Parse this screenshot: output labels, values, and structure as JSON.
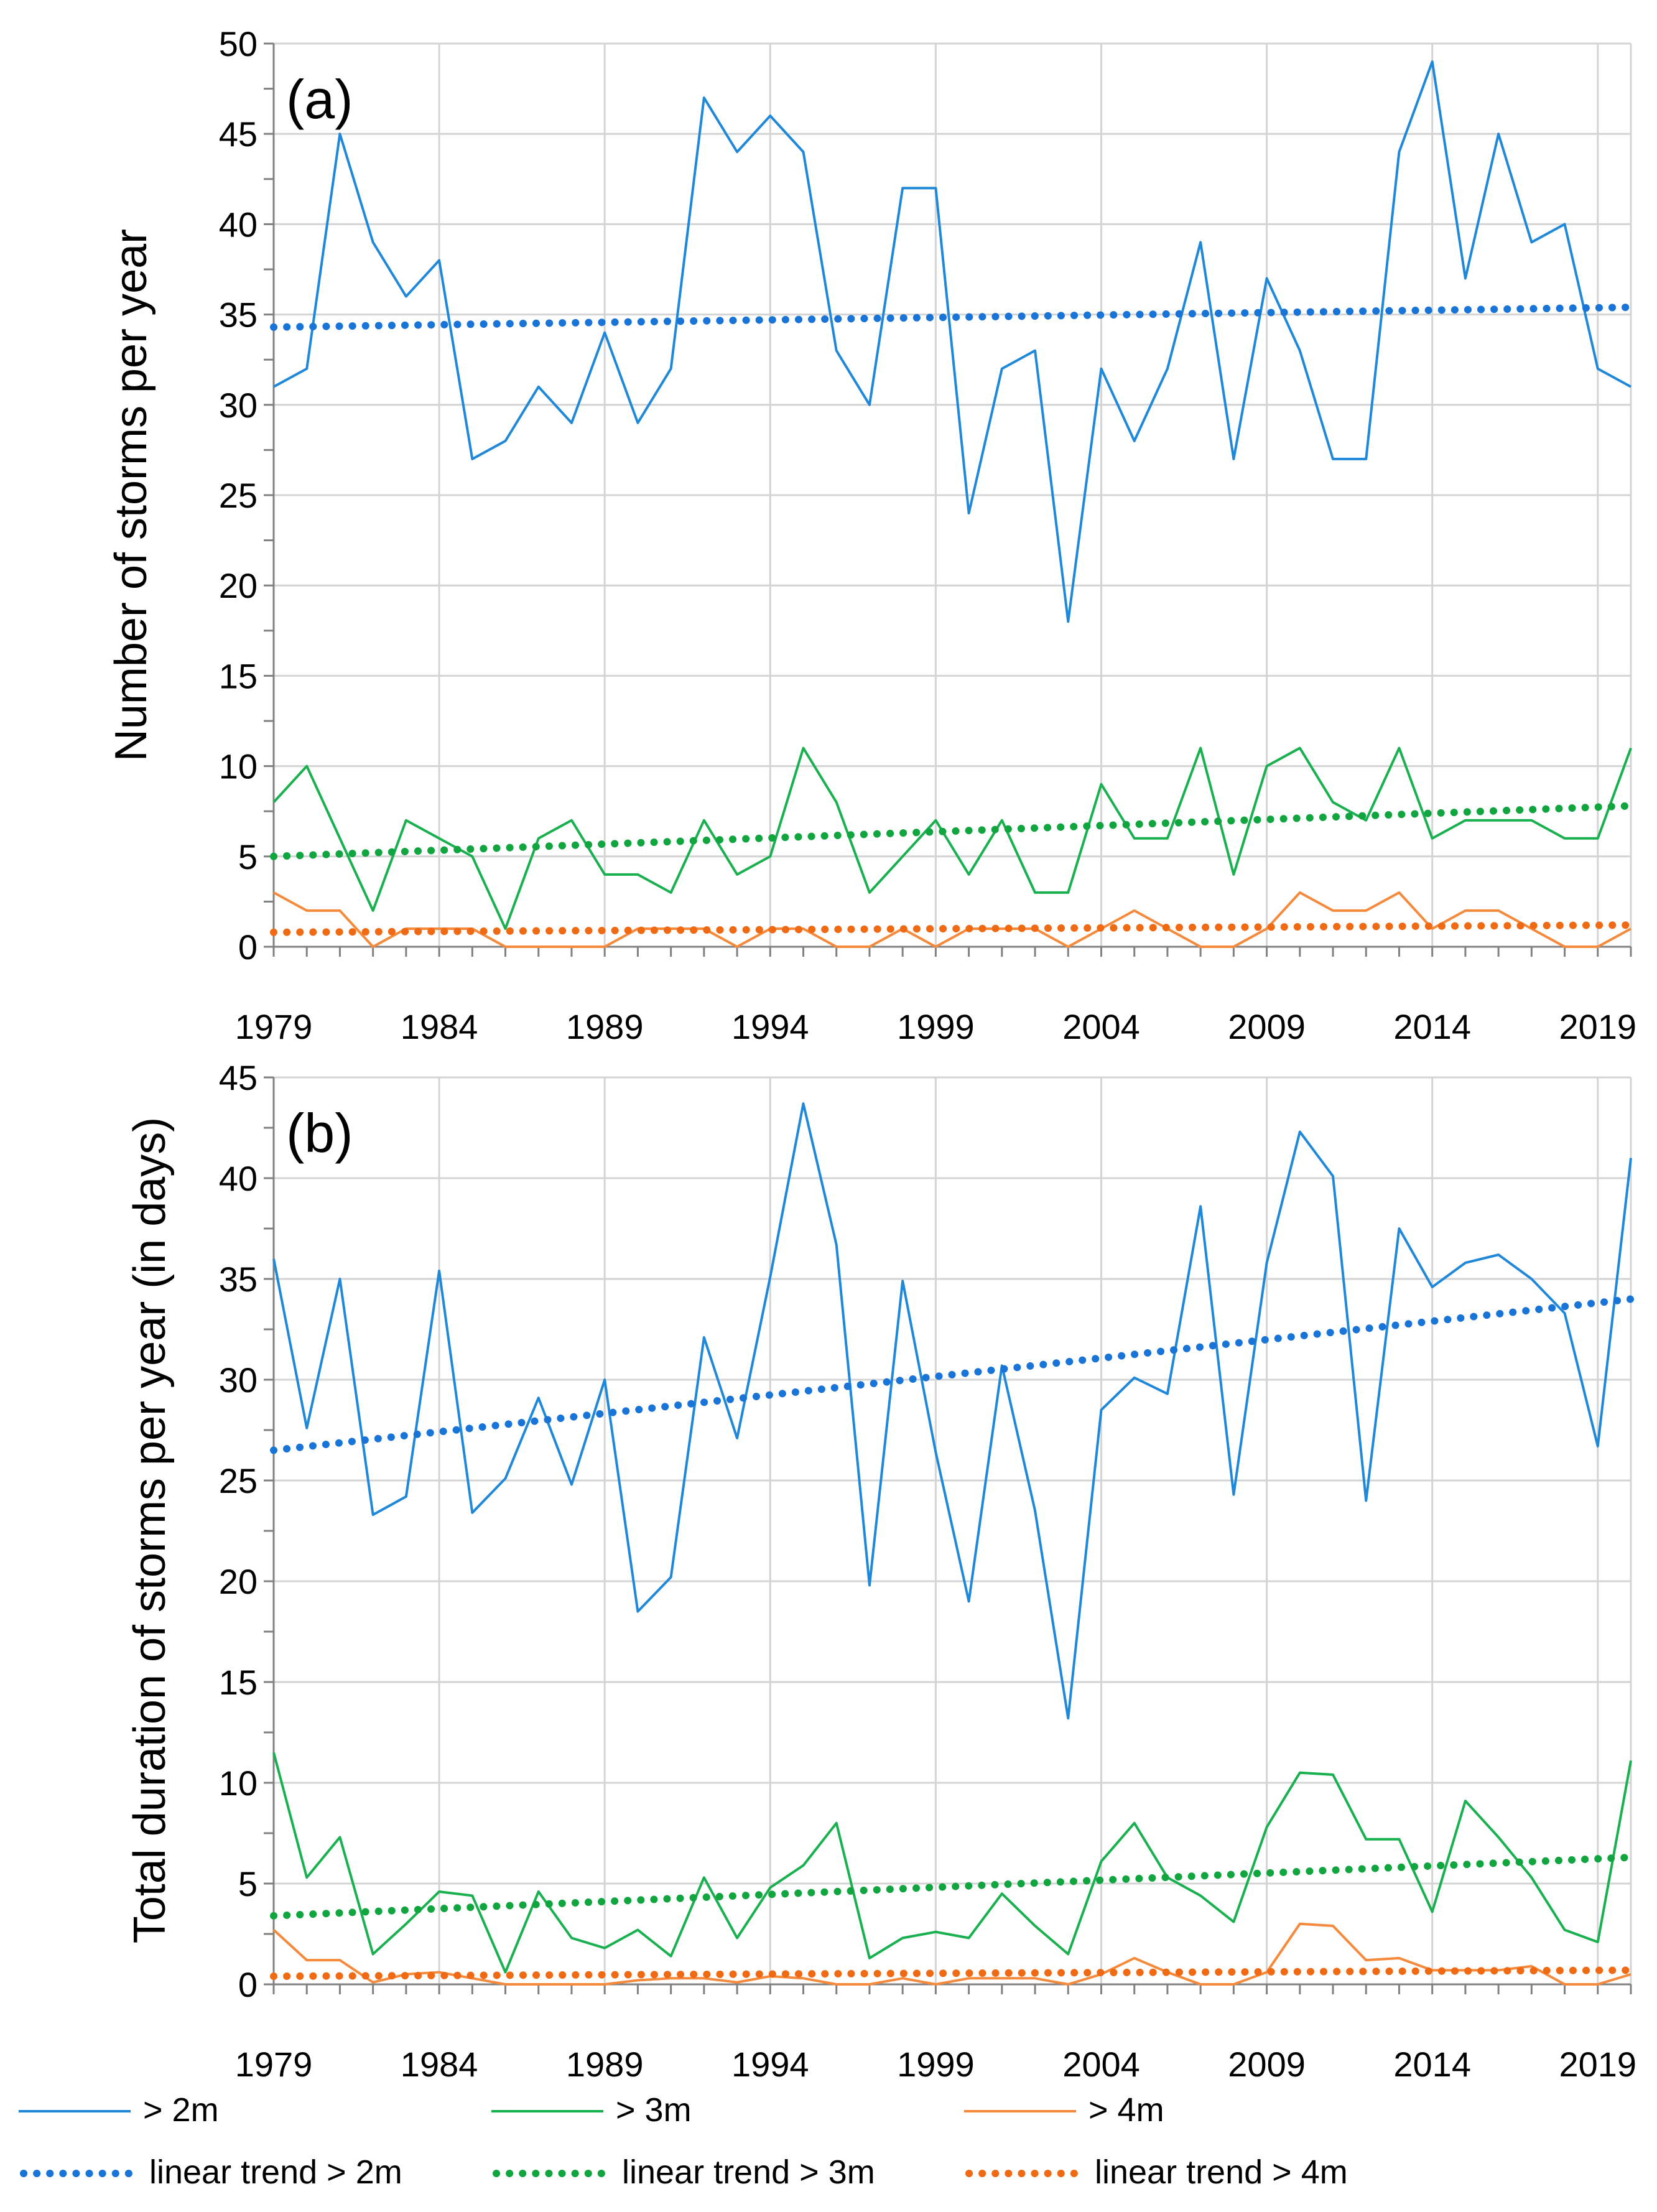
{
  "chart_data": [
    {
      "type": "line",
      "panel_label": "(a)",
      "title": "",
      "xlabel": "",
      "ylabel": "Number of storms per year",
      "xlim": [
        1979,
        2020
      ],
      "ylim": [
        0,
        50
      ],
      "x_ticks": [
        1979,
        1984,
        1989,
        1994,
        1999,
        2004,
        2009,
        2014,
        2019
      ],
      "x_tick_labels": [
        "1979",
        "1984",
        "1989",
        "1994",
        "1999",
        "2004",
        "2009",
        "2014",
        "2019"
      ],
      "y_ticks": [
        0,
        5,
        10,
        15,
        20,
        25,
        30,
        35,
        40,
        45,
        50
      ],
      "y_tick_labels": [
        "0",
        "5",
        "10",
        "15",
        "20",
        "25",
        "30",
        "35",
        "40",
        "45",
        "50"
      ],
      "grid": true,
      "x": [
        1979,
        1980,
        1981,
        1982,
        1983,
        1984,
        1985,
        1986,
        1987,
        1988,
        1989,
        1990,
        1991,
        1992,
        1993,
        1994,
        1995,
        1996,
        1997,
        1998,
        1999,
        2000,
        2001,
        2002,
        2003,
        2004,
        2005,
        2006,
        2007,
        2008,
        2009,
        2010,
        2011,
        2012,
        2013,
        2014,
        2015,
        2016,
        2017,
        2018,
        2019,
        2020
      ],
      "series": [
        {
          "name": "> 2m",
          "color": "#1f88d8",
          "style": "solid",
          "values": [
            31,
            32,
            45,
            39,
            36,
            38,
            27,
            28,
            31,
            29,
            34,
            29,
            32,
            47,
            44,
            46,
            44,
            33,
            30,
            42,
            42,
            24,
            32,
            33,
            18,
            32,
            28,
            32,
            39,
            27,
            37,
            33,
            27,
            27,
            44,
            49,
            37,
            45,
            39,
            40,
            32,
            31
          ]
        },
        {
          "name": "> 3m",
          "color": "#19b04f",
          "style": "solid",
          "values": [
            8,
            10,
            6,
            2,
            7,
            6,
            5,
            1,
            6,
            7,
            4,
            4,
            3,
            7,
            4,
            5,
            11,
            8,
            3,
            5,
            7,
            4,
            7,
            3,
            3,
            9,
            6,
            6,
            11,
            4,
            10,
            11,
            8,
            7,
            11,
            6,
            7,
            7,
            7,
            6,
            6,
            11
          ]
        },
        {
          "name": "> 4m",
          "color": "#f58a3c",
          "style": "solid",
          "values": [
            3,
            2,
            2,
            0,
            1,
            1,
            1,
            0,
            0,
            0,
            0,
            1,
            1,
            1,
            0,
            1,
            1,
            0,
            0,
            1,
            0,
            1,
            1,
            1,
            0,
            1,
            2,
            1,
            0,
            0,
            1,
            3,
            2,
            2,
            3,
            1,
            2,
            2,
            1,
            0,
            0,
            1
          ]
        },
        {
          "name": "linear trend > 2m",
          "color": "#1874d6",
          "style": "dotted",
          "values_at_xlim": [
            34.3,
            35.4
          ]
        },
        {
          "name": "linear trend > 3m",
          "color": "#11a53f",
          "style": "dotted",
          "values_at_xlim": [
            5.0,
            7.8
          ]
        },
        {
          "name": "linear trend > 4m",
          "color": "#f06a14",
          "style": "dotted",
          "values_at_xlim": [
            0.8,
            1.2
          ]
        }
      ]
    },
    {
      "type": "line",
      "panel_label": "(b)",
      "title": "",
      "xlabel": "",
      "ylabel": "Total duration of storms per year (in days)",
      "xlim": [
        1979,
        2020
      ],
      "ylim": [
        0,
        45
      ],
      "x_ticks": [
        1979,
        1984,
        1989,
        1994,
        1999,
        2004,
        2009,
        2014,
        2019
      ],
      "x_tick_labels": [
        "1979",
        "1984",
        "1989",
        "1994",
        "1999",
        "2004",
        "2009",
        "2014",
        "2019"
      ],
      "y_ticks": [
        0,
        5,
        10,
        15,
        20,
        25,
        30,
        35,
        40,
        45
      ],
      "y_tick_labels": [
        "0",
        "5",
        "10",
        "15",
        "20",
        "25",
        "30",
        "35",
        "40",
        "45"
      ],
      "grid": true,
      "x": [
        1979,
        1980,
        1981,
        1982,
        1983,
        1984,
        1985,
        1986,
        1987,
        1988,
        1989,
        1990,
        1991,
        1992,
        1993,
        1994,
        1995,
        1996,
        1997,
        1998,
        1999,
        2000,
        2001,
        2002,
        2003,
        2004,
        2005,
        2006,
        2007,
        2008,
        2009,
        2010,
        2011,
        2012,
        2013,
        2014,
        2015,
        2016,
        2017,
        2018,
        2019,
        2020
      ],
      "series": [
        {
          "name": "> 2m",
          "color": "#1f88d8",
          "style": "solid",
          "values": [
            36.0,
            27.6,
            35.0,
            23.3,
            24.2,
            35.4,
            23.4,
            25.1,
            29.1,
            24.8,
            30.0,
            18.5,
            20.2,
            32.1,
            27.1,
            35.1,
            43.7,
            36.7,
            19.8,
            34.9,
            26.4,
            19.0,
            30.7,
            23.5,
            13.2,
            28.5,
            30.1,
            29.3,
            38.6,
            24.3,
            35.8,
            42.3,
            40.1,
            24.0,
            37.5,
            34.6,
            35.8,
            36.2,
            35.0,
            33.3,
            26.7,
            41.0
          ]
        },
        {
          "name": "> 3m",
          "color": "#19b04f",
          "style": "solid",
          "values": [
            11.5,
            5.3,
            7.3,
            1.5,
            3.0,
            4.6,
            4.4,
            0.6,
            4.6,
            2.3,
            1.8,
            2.7,
            1.4,
            5.3,
            2.3,
            4.8,
            5.9,
            8.0,
            1.3,
            2.3,
            2.6,
            2.3,
            4.5,
            2.9,
            1.5,
            6.1,
            8.0,
            5.3,
            4.4,
            3.1,
            7.8,
            10.5,
            10.4,
            7.2,
            7.2,
            3.6,
            9.1,
            7.3,
            5.3,
            2.7,
            2.1,
            11.1
          ]
        },
        {
          "name": "> 4m",
          "color": "#f58a3c",
          "style": "solid",
          "values": [
            2.7,
            1.2,
            1.2,
            0.1,
            0.5,
            0.6,
            0.3,
            0.0,
            0.0,
            0.0,
            0.0,
            0.2,
            0.3,
            0.3,
            0.1,
            0.4,
            0.3,
            0.0,
            0.0,
            0.3,
            0.0,
            0.3,
            0.3,
            0.3,
            0.0,
            0.5,
            1.3,
            0.6,
            0.0,
            0.0,
            0.6,
            3.0,
            2.9,
            1.2,
            1.3,
            0.7,
            0.7,
            0.7,
            0.9,
            0.0,
            0.0,
            0.5
          ]
        },
        {
          "name": "linear trend > 2m",
          "color": "#1874d6",
          "style": "dotted",
          "values_at_xlim": [
            26.5,
            34.0
          ]
        },
        {
          "name": "linear trend > 3m",
          "color": "#11a53f",
          "style": "dotted",
          "values_at_xlim": [
            3.4,
            6.3
          ]
        },
        {
          "name": "linear trend > 4m",
          "color": "#f06a14",
          "style": "dotted",
          "values_at_xlim": [
            0.4,
            0.7
          ]
        }
      ]
    }
  ],
  "legend": {
    "placement": "bottom",
    "entries": [
      {
        "label": "> 2m",
        "color": "#1f88d8",
        "style": "solid"
      },
      {
        "label": "> 3m",
        "color": "#19b04f",
        "style": "solid"
      },
      {
        "label": "> 4m",
        "color": "#f58a3c",
        "style": "solid"
      },
      {
        "label": "linear trend > 2m",
        "color": "#1874d6",
        "style": "dotted"
      },
      {
        "label": "linear trend > 3m",
        "color": "#11a53f",
        "style": "dotted"
      },
      {
        "label": "linear trend > 4m",
        "color": "#f06a14",
        "style": "dotted"
      }
    ]
  }
}
